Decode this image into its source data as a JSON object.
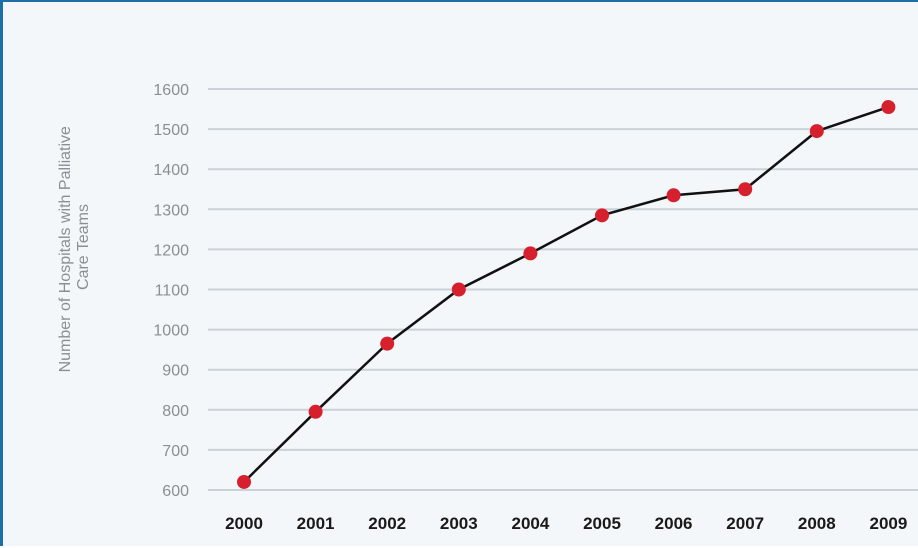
{
  "chart_data": {
    "type": "line",
    "title": "",
    "xlabel": "",
    "ylabel_lines": [
      "Number of Hospitals with Palliative",
      "Care Teams"
    ],
    "x": [
      "2000",
      "2001",
      "2002",
      "2003",
      "2004",
      "2005",
      "2006",
      "2007",
      "2008",
      "2009"
    ],
    "series": [
      {
        "values": [
          620,
          795,
          965,
          1100,
          1190,
          1285,
          1335,
          1350,
          1495,
          1555
        ],
        "line_color": "#111111",
        "marker_color": "#d7202e"
      }
    ],
    "yticks": [
      600,
      700,
      800,
      900,
      1000,
      1100,
      1200,
      1300,
      1400,
      1500,
      1600
    ],
    "ylim": [
      580,
      1620
    ],
    "grid": true,
    "legend": "none"
  },
  "colors": {
    "border": "#1e6fa8",
    "background": "#f3f7f9",
    "gridline": "#c9d2d8"
  }
}
